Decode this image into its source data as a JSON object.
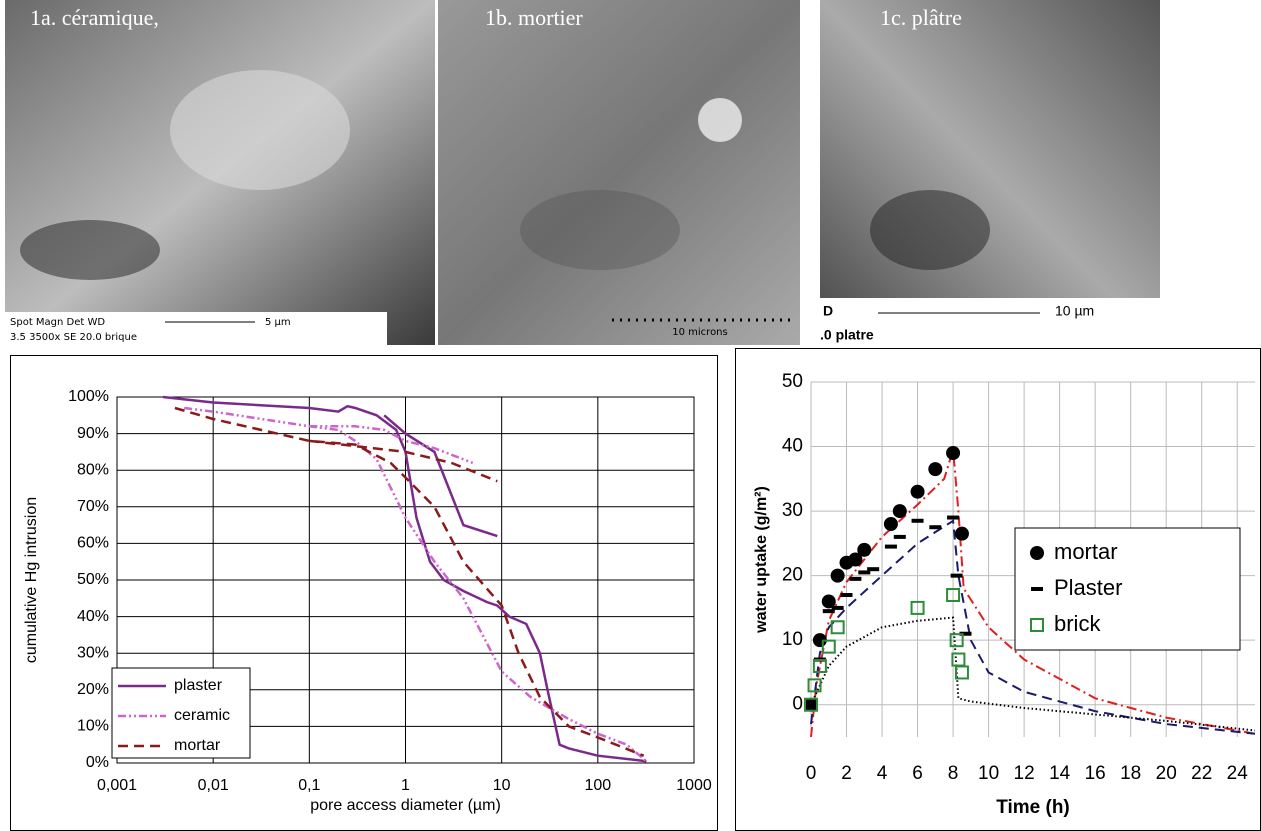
{
  "images": [
    {
      "caption": "1a. céramique,",
      "info_line1": "Spot Magn   Det  WD",
      "info_line2": "3.5   3500x   SE   20.0  brique",
      "scale": "5 µm"
    },
    {
      "caption": "1b. mortier",
      "scale": "10 microns"
    },
    {
      "caption": "1c. plâtre",
      "info_line1": "D",
      "info_line2": ".0  platre",
      "scale": "10 µm"
    }
  ],
  "chart_data": [
    {
      "type": "line",
      "xscale": "log",
      "xlabel": "pore access diameter (µm)",
      "ylabel": "cumulative Hg intrusion",
      "xlim": [
        0.001,
        1000
      ],
      "ylim": [
        0,
        100
      ],
      "grid": true,
      "legend": "lower left",
      "xticks": [
        {
          "value": 0.001,
          "label": "0,001"
        },
        {
          "value": 0.01,
          "label": "0,01"
        },
        {
          "value": 0.1,
          "label": "0,1"
        },
        1,
        10,
        100,
        1000
      ],
      "yticks": [
        {
          "value": 0,
          "label": "0%"
        },
        {
          "value": 10,
          "label": "10%"
        },
        {
          "value": 20,
          "label": "20%"
        },
        {
          "value": 30,
          "label": "30%"
        },
        {
          "value": 40,
          "label": "40%"
        },
        {
          "value": 50,
          "label": "50%"
        },
        {
          "value": 60,
          "label": "60%"
        },
        {
          "value": 70,
          "label": "70%"
        },
        {
          "value": 80,
          "label": "80%"
        },
        {
          "value": 90,
          "label": "90%"
        },
        {
          "value": 100,
          "label": "100%"
        }
      ],
      "series": [
        {
          "name": "plaster",
          "color": "#7b2a8c",
          "linestyle": "solid",
          "x": [
            0.003,
            0.01,
            0.1,
            0.2,
            0.25,
            0.3,
            0.5,
            0.8,
            1,
            1.3,
            1.8,
            2.5,
            4,
            7,
            9,
            12,
            18,
            25,
            30,
            40,
            50,
            100,
            320,
            null,
            0.6,
            1,
            2,
            4,
            9
          ],
          "values": [
            100,
            98.5,
            97,
            96,
            97.5,
            97,
            95,
            91,
            85,
            67,
            55,
            50,
            47,
            44,
            43,
            40,
            38,
            30,
            20,
            5,
            4,
            2,
            0.5,
            null,
            95,
            90,
            85,
            65,
            62
          ]
        },
        {
          "name": "ceramic",
          "color": "#cc66cc",
          "linestyle": "dashdotdot",
          "x": [
            0.005,
            0.01,
            0.1,
            0.2,
            0.3,
            0.5,
            1,
            1.5,
            2,
            4,
            10,
            20,
            50,
            100,
            200,
            320,
            null,
            0.1,
            0.3,
            0.6,
            1,
            2,
            5
          ],
          "values": [
            97,
            96,
            92,
            91,
            88,
            83,
            67,
            60,
            55,
            45,
            25,
            18,
            12,
            8,
            5,
            0.5,
            null,
            92,
            92,
            91,
            88,
            86,
            82
          ]
        },
        {
          "name": "mortar",
          "color": "#8b1a1a",
          "linestyle": "dashed",
          "x": [
            0.004,
            0.01,
            0.1,
            0.3,
            0.7,
            1,
            2,
            4,
            10,
            15,
            25,
            50,
            100,
            300,
            null,
            0.1,
            1,
            3,
            9
          ],
          "values": [
            97,
            94,
            88,
            87,
            82,
            78,
            70,
            55,
            43,
            30,
            18,
            10,
            7,
            2,
            null,
            88,
            85,
            82,
            77
          ]
        }
      ]
    },
    {
      "type": "scatter",
      "xlabel": "Time (h)",
      "ylabel": "water uptake (g/m²)",
      "xlim": [
        0,
        25
      ],
      "ylim": [
        -5,
        50
      ],
      "grid": true,
      "legend": "right",
      "xticks": [
        0,
        2,
        4,
        6,
        8,
        10,
        12,
        14,
        16,
        18,
        20,
        22,
        24
      ],
      "yticks": [
        0,
        10,
        20,
        30,
        40,
        50
      ],
      "series": [
        {
          "name": "mortar",
          "color": "#000000",
          "marker": "circle",
          "x": [
            0,
            0.5,
            1,
            1.5,
            2,
            2.5,
            3,
            4.5,
            5,
            6,
            7,
            8,
            8.5
          ],
          "values": [
            0,
            10,
            16,
            20,
            22,
            22.5,
            24,
            28,
            30,
            33,
            36.5,
            39,
            26.5
          ]
        },
        {
          "name": "Plaster",
          "color": "#000000",
          "marker": "dash",
          "x": [
            0,
            0.5,
            1,
            1.5,
            2,
            2.5,
            3,
            3.5,
            4.5,
            5,
            6,
            7,
            8,
            8.2,
            8.7
          ],
          "values": [
            0,
            7,
            14.5,
            15,
            17,
            19.5,
            20.5,
            21,
            24.5,
            26,
            28.5,
            27.5,
            29,
            20,
            11
          ]
        },
        {
          "name": "brick",
          "color": "#2e8b3a",
          "marker": "square",
          "x": [
            0,
            0.2,
            0.5,
            1,
            1.5,
            6,
            8,
            8.2,
            8.3,
            8.5
          ],
          "values": [
            0,
            3,
            6,
            9,
            12,
            15,
            17,
            10,
            7,
            5
          ]
        }
      ],
      "lines": [
        {
          "color": "#e02020",
          "linestyle": "dashdot",
          "x": [
            0,
            0.3,
            1,
            2,
            4,
            6,
            7.5,
            8,
            8.3,
            8.6,
            10,
            12,
            16,
            20,
            24,
            25
          ],
          "values": [
            -5,
            3,
            13,
            19,
            26,
            31,
            35,
            39.5,
            30,
            18,
            12,
            7,
            1,
            -2,
            -4,
            -4.5
          ]
        },
        {
          "color": "#1a1a6e",
          "linestyle": "dashed",
          "x": [
            0,
            0.5,
            1,
            2,
            4,
            6,
            8,
            8.3,
            9,
            10,
            12,
            16,
            20,
            25
          ],
          "values": [
            -3,
            8,
            12,
            15,
            20,
            25,
            28.5,
            20,
            10,
            5,
            2,
            -1,
            -3,
            -4.5
          ]
        },
        {
          "color": "#000000",
          "linestyle": "dotted",
          "x": [
            0,
            0.5,
            1,
            2,
            4,
            6,
            8,
            8.3,
            9,
            12,
            20,
            25
          ],
          "values": [
            0,
            3,
            6,
            9,
            12,
            13,
            13.5,
            1,
            0.5,
            -0.5,
            -2.5,
            -4
          ]
        }
      ]
    }
  ]
}
